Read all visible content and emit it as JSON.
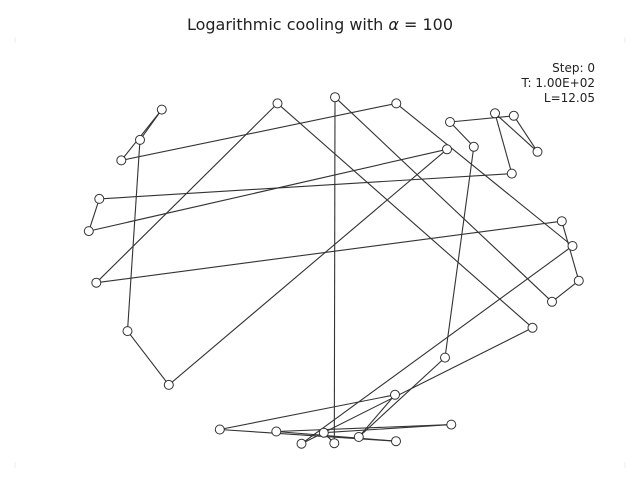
{
  "chart_data": {
    "type": "line",
    "title_prefix": "Logarithmic cooling with ",
    "title_symbol": "α",
    "title_suffix": " = 100",
    "annotations": {
      "step": "Step: 0",
      "temperature": "T: 1.00E+02",
      "length": "L=12.05"
    },
    "axes_visible": false,
    "grid": false,
    "xlim": [
      -1.1,
      1.1
    ],
    "ylim": [
      -0.85,
      0.85
    ],
    "cities": [
      [
        0.0,
        0.6
      ],
      [
        0.245,
        0.575
      ],
      [
        -0.23,
        0.575
      ],
      [
        0.46,
        0.5
      ],
      [
        0.715,
        0.525
      ],
      [
        0.81,
        0.38
      ],
      [
        0.95,
        0.0
      ],
      [
        0.975,
        -0.14
      ],
      [
        0.79,
        -0.33
      ],
      [
        0.44,
        -0.45
      ],
      [
        0.24,
        -0.6
      ],
      [
        0.095,
        -0.77
      ],
      [
        -0.003,
        -0.795
      ],
      [
        -0.235,
        -0.748
      ],
      [
        -0.665,
        -0.56
      ],
      [
        -0.83,
        -0.343
      ],
      [
        -0.955,
        -0.148
      ],
      [
        -0.985,
        0.06
      ],
      [
        -0.943,
        0.19
      ],
      [
        -0.855,
        0.345
      ],
      [
        -0.78,
        0.428
      ],
      [
        -0.693,
        0.55
      ],
      [
        0.448,
        0.39
      ],
      [
        0.555,
        0.4
      ],
      [
        0.64,
        0.535
      ],
      [
        0.707,
        0.292
      ],
      [
        0.907,
        0.1
      ],
      [
        0.868,
        -0.225
      ],
      [
        0.465,
        -0.72
      ],
      [
        0.244,
        -0.787
      ],
      [
        -0.045,
        -0.753
      ],
      [
        -0.134,
        -0.797
      ],
      [
        -0.461,
        -0.74
      ]
    ],
    "tour": [
      0,
      12,
      30,
      28,
      13,
      29,
      32,
      10,
      11,
      9,
      23,
      3,
      4,
      5,
      24,
      25,
      18,
      17,
      22,
      14,
      15,
      20,
      21,
      19,
      1,
      6,
      31,
      8,
      2,
      16,
      26,
      7,
      27,
      0
    ]
  }
}
